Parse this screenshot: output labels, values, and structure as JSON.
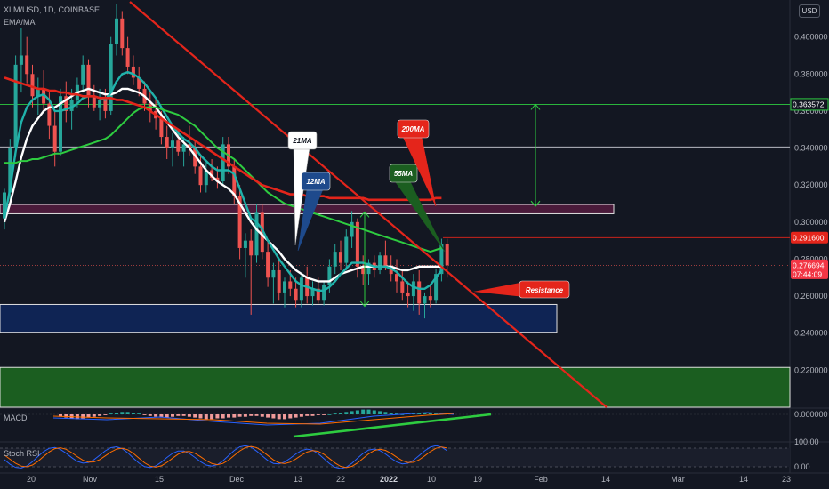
{
  "header": {
    "title": "XLM/USD, 1D, COINBASE",
    "subtitle": "EMA/MA",
    "currency_badge": "USD"
  },
  "indicators": {
    "macd_label": "MACD",
    "stoch_label": "Stoch RSI"
  },
  "colors": {
    "background": "#131722",
    "up": "#26a69a",
    "down": "#ef5350",
    "trendline": "#e4251b",
    "ma200": "#e4251b",
    "ma55": "#2ecc40",
    "ma21": "#ffffff",
    "ema12": "#20b2aa",
    "purple_zone": "#4a1a3a",
    "blue_zone": "#0f2454",
    "green_zone": "#1b5e20",
    "price_tag": "#f23645"
  },
  "chart_data": {
    "type": "candlestick",
    "ylim": [
      0.2,
      0.42
    ],
    "y_ticks": [
      "0.400000",
      "0.380000",
      "0.360000",
      "0.340000",
      "0.320000",
      "0.300000",
      "0.280000",
      "0.260000",
      "0.240000",
      "0.220000"
    ],
    "x_ticks": [
      "20",
      "Nov",
      "15",
      "Dec",
      "13",
      "22",
      "2022",
      "10",
      "19",
      "Feb",
      "14",
      "Mar",
      "14",
      "23"
    ],
    "current_price": "0.276694",
    "countdown": "07:44:09",
    "level_high": "0.291600",
    "level_target": "0.363572",
    "candles": [
      {
        "o": 0.302,
        "h": 0.318,
        "l": 0.296,
        "c": 0.316
      },
      {
        "o": 0.316,
        "h": 0.345,
        "l": 0.31,
        "c": 0.34
      },
      {
        "o": 0.34,
        "h": 0.39,
        "l": 0.335,
        "c": 0.385
      },
      {
        "o": 0.385,
        "h": 0.405,
        "l": 0.37,
        "c": 0.39
      },
      {
        "o": 0.39,
        "h": 0.4,
        "l": 0.375,
        "c": 0.38
      },
      {
        "o": 0.38,
        "h": 0.385,
        "l": 0.362,
        "c": 0.368
      },
      {
        "o": 0.368,
        "h": 0.378,
        "l": 0.358,
        "c": 0.372
      },
      {
        "o": 0.372,
        "h": 0.382,
        "l": 0.36,
        "c": 0.364
      },
      {
        "o": 0.364,
        "h": 0.37,
        "l": 0.345,
        "c": 0.352
      },
      {
        "o": 0.352,
        "h": 0.36,
        "l": 0.33,
        "c": 0.338
      },
      {
        "o": 0.338,
        "h": 0.372,
        "l": 0.336,
        "c": 0.368
      },
      {
        "o": 0.368,
        "h": 0.376,
        "l": 0.354,
        "c": 0.36
      },
      {
        "o": 0.36,
        "h": 0.372,
        "l": 0.35,
        "c": 0.366
      },
      {
        "o": 0.366,
        "h": 0.378,
        "l": 0.362,
        "c": 0.374
      },
      {
        "o": 0.374,
        "h": 0.39,
        "l": 0.37,
        "c": 0.385
      },
      {
        "o": 0.385,
        "h": 0.388,
        "l": 0.362,
        "c": 0.368
      },
      {
        "o": 0.368,
        "h": 0.374,
        "l": 0.36,
        "c": 0.362
      },
      {
        "o": 0.362,
        "h": 0.372,
        "l": 0.355,
        "c": 0.366
      },
      {
        "o": 0.366,
        "h": 0.372,
        "l": 0.356,
        "c": 0.36
      },
      {
        "o": 0.36,
        "h": 0.4,
        "l": 0.358,
        "c": 0.396
      },
      {
        "o": 0.396,
        "h": 0.418,
        "l": 0.39,
        "c": 0.41
      },
      {
        "o": 0.41,
        "h": 0.414,
        "l": 0.39,
        "c": 0.394
      },
      {
        "o": 0.394,
        "h": 0.4,
        "l": 0.38,
        "c": 0.384
      },
      {
        "o": 0.384,
        "h": 0.39,
        "l": 0.374,
        "c": 0.378
      },
      {
        "o": 0.378,
        "h": 0.384,
        "l": 0.368,
        "c": 0.372
      },
      {
        "o": 0.372,
        "h": 0.376,
        "l": 0.36,
        "c": 0.364
      },
      {
        "o": 0.364,
        "h": 0.37,
        "l": 0.354,
        "c": 0.36
      },
      {
        "o": 0.36,
        "h": 0.366,
        "l": 0.35,
        "c": 0.356
      },
      {
        "o": 0.356,
        "h": 0.36,
        "l": 0.342,
        "c": 0.346
      },
      {
        "o": 0.346,
        "h": 0.352,
        "l": 0.334,
        "c": 0.34
      },
      {
        "o": 0.34,
        "h": 0.348,
        "l": 0.33,
        "c": 0.344
      },
      {
        "o": 0.344,
        "h": 0.35,
        "l": 0.336,
        "c": 0.338
      },
      {
        "o": 0.338,
        "h": 0.346,
        "l": 0.33,
        "c": 0.342
      },
      {
        "o": 0.342,
        "h": 0.352,
        "l": 0.336,
        "c": 0.34
      },
      {
        "o": 0.34,
        "h": 0.344,
        "l": 0.326,
        "c": 0.33
      },
      {
        "o": 0.33,
        "h": 0.336,
        "l": 0.316,
        "c": 0.32
      },
      {
        "o": 0.32,
        "h": 0.332,
        "l": 0.316,
        "c": 0.328
      },
      {
        "o": 0.328,
        "h": 0.334,
        "l": 0.322,
        "c": 0.324
      },
      {
        "o": 0.324,
        "h": 0.33,
        "l": 0.318,
        "c": 0.322
      },
      {
        "o": 0.322,
        "h": 0.346,
        "l": 0.32,
        "c": 0.342
      },
      {
        "o": 0.342,
        "h": 0.346,
        "l": 0.326,
        "c": 0.33
      },
      {
        "o": 0.33,
        "h": 0.334,
        "l": 0.31,
        "c": 0.314
      },
      {
        "o": 0.314,
        "h": 0.32,
        "l": 0.28,
        "c": 0.286
      },
      {
        "o": 0.286,
        "h": 0.294,
        "l": 0.27,
        "c": 0.29
      },
      {
        "o": 0.29,
        "h": 0.296,
        "l": 0.25,
        "c": 0.282
      },
      {
        "o": 0.282,
        "h": 0.31,
        "l": 0.278,
        "c": 0.305
      },
      {
        "o": 0.305,
        "h": 0.31,
        "l": 0.28,
        "c": 0.284
      },
      {
        "o": 0.284,
        "h": 0.29,
        "l": 0.265,
        "c": 0.27
      },
      {
        "o": 0.27,
        "h": 0.278,
        "l": 0.256,
        "c": 0.274
      },
      {
        "o": 0.274,
        "h": 0.28,
        "l": 0.258,
        "c": 0.262
      },
      {
        "o": 0.262,
        "h": 0.27,
        "l": 0.254,
        "c": 0.268
      },
      {
        "o": 0.268,
        "h": 0.274,
        "l": 0.26,
        "c": 0.264
      },
      {
        "o": 0.264,
        "h": 0.27,
        "l": 0.254,
        "c": 0.258
      },
      {
        "o": 0.258,
        "h": 0.272,
        "l": 0.254,
        "c": 0.27
      },
      {
        "o": 0.27,
        "h": 0.276,
        "l": 0.256,
        "c": 0.26
      },
      {
        "o": 0.26,
        "h": 0.268,
        "l": 0.255,
        "c": 0.264
      },
      {
        "o": 0.264,
        "h": 0.27,
        "l": 0.256,
        "c": 0.258
      },
      {
        "o": 0.258,
        "h": 0.268,
        "l": 0.255,
        "c": 0.266
      },
      {
        "o": 0.266,
        "h": 0.28,
        "l": 0.262,
        "c": 0.276
      },
      {
        "o": 0.276,
        "h": 0.288,
        "l": 0.272,
        "c": 0.284
      },
      {
        "o": 0.284,
        "h": 0.29,
        "l": 0.274,
        "c": 0.278
      },
      {
        "o": 0.278,
        "h": 0.296,
        "l": 0.274,
        "c": 0.292
      },
      {
        "o": 0.292,
        "h": 0.306,
        "l": 0.286,
        "c": 0.3
      },
      {
        "o": 0.3,
        "h": 0.302,
        "l": 0.27,
        "c": 0.276
      },
      {
        "o": 0.276,
        "h": 0.282,
        "l": 0.266,
        "c": 0.272
      },
      {
        "o": 0.272,
        "h": 0.28,
        "l": 0.266,
        "c": 0.278
      },
      {
        "o": 0.278,
        "h": 0.282,
        "l": 0.27,
        "c": 0.274
      },
      {
        "o": 0.274,
        "h": 0.284,
        "l": 0.272,
        "c": 0.282
      },
      {
        "o": 0.282,
        "h": 0.29,
        "l": 0.274,
        "c": 0.276
      },
      {
        "o": 0.276,
        "h": 0.282,
        "l": 0.268,
        "c": 0.272
      },
      {
        "o": 0.272,
        "h": 0.28,
        "l": 0.262,
        "c": 0.268
      },
      {
        "o": 0.268,
        "h": 0.274,
        "l": 0.258,
        "c": 0.262
      },
      {
        "o": 0.262,
        "h": 0.268,
        "l": 0.254,
        "c": 0.26
      },
      {
        "o": 0.26,
        "h": 0.272,
        "l": 0.252,
        "c": 0.268
      },
      {
        "o": 0.268,
        "h": 0.274,
        "l": 0.25,
        "c": 0.256
      },
      {
        "o": 0.256,
        "h": 0.262,
        "l": 0.248,
        "c": 0.26
      },
      {
        "o": 0.26,
        "h": 0.266,
        "l": 0.254,
        "c": 0.258
      },
      {
        "o": 0.258,
        "h": 0.275,
        "l": 0.256,
        "c": 0.272
      },
      {
        "o": 0.272,
        "h": 0.291,
        "l": 0.268,
        "c": 0.288
      },
      {
        "o": 0.288,
        "h": 0.291,
        "l": 0.27,
        "c": 0.2767
      }
    ],
    "series": [
      {
        "name": "21MA",
        "values": [
          0.3,
          0.31,
          0.322,
          0.335,
          0.345,
          0.352,
          0.356,
          0.36,
          0.362,
          0.362,
          0.364,
          0.366,
          0.368,
          0.37,
          0.371,
          0.372,
          0.371,
          0.37,
          0.369,
          0.369,
          0.37,
          0.372,
          0.372,
          0.371,
          0.37,
          0.368,
          0.365,
          0.362,
          0.358,
          0.354,
          0.35,
          0.346,
          0.343,
          0.34,
          0.336,
          0.332,
          0.328,
          0.325,
          0.322,
          0.32,
          0.318,
          0.315,
          0.31,
          0.305,
          0.3,
          0.296,
          0.293,
          0.29,
          0.287,
          0.284,
          0.28,
          0.277,
          0.274,
          0.272,
          0.27,
          0.269,
          0.268,
          0.268,
          0.268,
          0.27,
          0.272,
          0.273,
          0.274,
          0.275,
          0.276,
          0.276,
          0.276,
          0.276,
          0.276,
          0.276,
          0.275,
          0.274,
          0.274,
          0.275,
          0.276,
          0.276,
          0.276,
          0.276,
          0.276
        ]
      },
      {
        "name": "12MA",
        "values": [
          0.302,
          0.318,
          0.338,
          0.354,
          0.362,
          0.366,
          0.368,
          0.369,
          0.366,
          0.36,
          0.36,
          0.361,
          0.362,
          0.364,
          0.367,
          0.368,
          0.368,
          0.367,
          0.366,
          0.37,
          0.376,
          0.38,
          0.381,
          0.38,
          0.378,
          0.375,
          0.371,
          0.367,
          0.362,
          0.357,
          0.352,
          0.348,
          0.345,
          0.343,
          0.34,
          0.336,
          0.333,
          0.33,
          0.328,
          0.328,
          0.328,
          0.326,
          0.318,
          0.31,
          0.302,
          0.3,
          0.296,
          0.29,
          0.285,
          0.28,
          0.276,
          0.272,
          0.268,
          0.266,
          0.265,
          0.264,
          0.263,
          0.263,
          0.265,
          0.268,
          0.272,
          0.275,
          0.278,
          0.278,
          0.278,
          0.277,
          0.276,
          0.276,
          0.276,
          0.275,
          0.273,
          0.27,
          0.267,
          0.265,
          0.264,
          0.264,
          0.266,
          0.27,
          0.274
        ]
      },
      {
        "name": "55SMA",
        "values": [
          0.332,
          0.332,
          0.332,
          0.333,
          0.333,
          0.334,
          0.334,
          0.335,
          0.336,
          0.337,
          0.337,
          0.338,
          0.339,
          0.34,
          0.341,
          0.342,
          0.343,
          0.344,
          0.345,
          0.347,
          0.35,
          0.353,
          0.356,
          0.359,
          0.361,
          0.362,
          0.362,
          0.362,
          0.361,
          0.36,
          0.359,
          0.358,
          0.356,
          0.354,
          0.352,
          0.349,
          0.346,
          0.343,
          0.34,
          0.338,
          0.336,
          0.334,
          0.331,
          0.328,
          0.325,
          0.322,
          0.319,
          0.316,
          0.314,
          0.312,
          0.31,
          0.309,
          0.308,
          0.307,
          0.306,
          0.305,
          0.304,
          0.303,
          0.302,
          0.301,
          0.3,
          0.299,
          0.298,
          0.297,
          0.296,
          0.295,
          0.294,
          0.293,
          0.292,
          0.291,
          0.29,
          0.289,
          0.288,
          0.287,
          0.286,
          0.285,
          0.284,
          0.285,
          0.286
        ]
      },
      {
        "name": "200MA",
        "values": [
          0.378,
          0.377,
          0.376,
          0.375,
          0.374,
          0.373,
          0.372,
          0.372,
          0.371,
          0.371,
          0.37,
          0.37,
          0.369,
          0.369,
          0.368,
          0.368,
          0.368,
          0.367,
          0.367,
          0.367,
          0.366,
          0.366,
          0.365,
          0.364,
          0.363,
          0.362,
          0.36,
          0.358,
          0.356,
          0.354,
          0.352,
          0.35,
          0.348,
          0.346,
          0.344,
          0.342,
          0.34,
          0.338,
          0.336,
          0.334,
          0.332,
          0.33,
          0.328,
          0.326,
          0.324,
          0.322,
          0.32,
          0.319,
          0.318,
          0.317,
          0.316,
          0.315,
          0.315,
          0.315,
          0.314,
          0.314,
          0.314,
          0.314,
          0.313,
          0.313,
          0.313,
          0.313,
          0.313,
          0.313,
          0.313,
          0.312,
          0.312,
          0.312,
          0.312,
          0.312,
          0.312,
          0.312,
          0.312,
          0.312,
          0.312,
          0.312,
          0.312,
          0.313,
          0.313
        ]
      }
    ],
    "callouts": [
      {
        "label": "21MA",
        "bg": "#ffffff",
        "fg": "#131722"
      },
      {
        "label": "12MA",
        "bg": "#1e4a8c",
        "fg": "#ffffff"
      },
      {
        "label": "55MA",
        "bg": "#1b5e20",
        "fg": "#ffffff"
      },
      {
        "label": "200MA",
        "bg": "#e4251b",
        "fg": "#ffffff"
      },
      {
        "label": "Resistance",
        "bg": "#e4251b",
        "fg": "#ffffff"
      }
    ],
    "macd": {
      "ylabel": "0.000000",
      "histogram": [
        -0.003,
        -0.004,
        -0.005,
        -0.006,
        -0.005,
        -0.004,
        -0.003,
        -0.002,
        -0.001,
        0.001,
        0.002,
        0.003,
        0.003,
        0.002,
        0.001,
        -0.001,
        -0.002,
        -0.003,
        -0.004,
        -0.004,
        -0.003,
        -0.002,
        -0.002,
        -0.003,
        -0.004,
        -0.005,
        -0.006,
        -0.006,
        -0.005,
        -0.005,
        -0.004,
        -0.004,
        -0.003,
        -0.003,
        -0.002,
        -0.002,
        -0.003,
        -0.004,
        -0.005,
        -0.006,
        -0.006,
        -0.005,
        -0.004,
        -0.003,
        -0.002,
        -0.002,
        -0.001,
        -0.001,
        0.0,
        0.001,
        0.002,
        0.003,
        0.004,
        0.005,
        0.006,
        0.006,
        0.005,
        0.004,
        0.003,
        0.002,
        0.001,
        0.0,
        0.001,
        0.001,
        0.002,
        0.002,
        0.002,
        0.001,
        0.001
      ]
    },
    "stoch": {
      "ticks": [
        "100.00",
        "0.00"
      ]
    }
  }
}
